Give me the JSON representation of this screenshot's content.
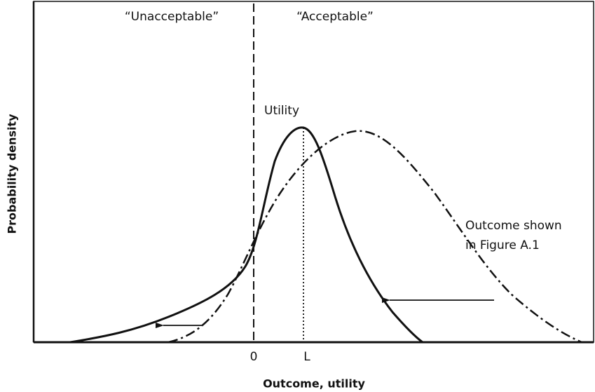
{
  "regions": {
    "left": "“Unacceptable”",
    "right": "“Acceptable”"
  },
  "curves": {
    "utility": "Utility",
    "outcome_line1": "Outcome shown",
    "outcome_line2": "in Figure A.1"
  },
  "x_axis": {
    "title": "Outcome, utility",
    "marks": [
      "0",
      "L"
    ]
  },
  "y_axis": {
    "title": "Probability density"
  }
}
